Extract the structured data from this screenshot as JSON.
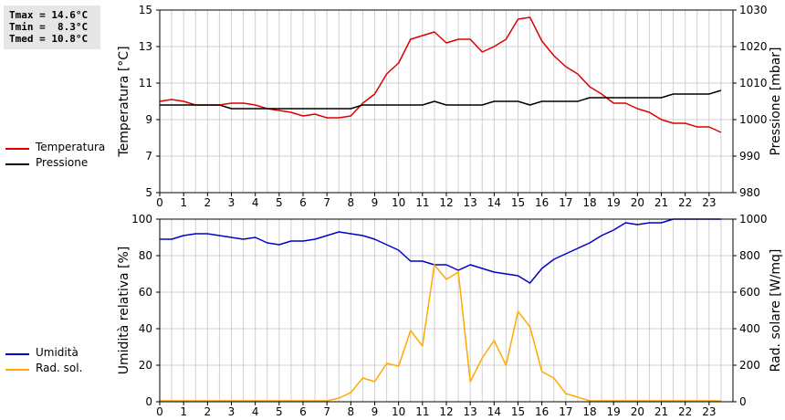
{
  "stats": {
    "tmax": "Tmax = 14.6°C",
    "tmin": "Tmin =  8.3°C",
    "tmed": "Tmed = 10.8°C"
  },
  "chart_data": [
    {
      "type": "line",
      "ylabel": "Temperatura [°C]",
      "y2label": "Pressione [mbar]",
      "xlim": [
        0,
        24
      ],
      "ylim": [
        5,
        15
      ],
      "y2lim": [
        980,
        1030
      ],
      "xticks": [
        "0",
        "1",
        "2",
        "3",
        "4",
        "5",
        "6",
        "7",
        "8",
        "9",
        "10",
        "11",
        "12",
        "13",
        "14",
        "15",
        "16",
        "17",
        "18",
        "19",
        "20",
        "21",
        "22",
        "23"
      ],
      "yticks": [
        "5",
        "7",
        "9",
        "11",
        "13",
        "15"
      ],
      "y2ticks": [
        "980",
        "990",
        "1000",
        "1010",
        "1020",
        "1030"
      ],
      "grid": true,
      "legend_position": "left",
      "series": [
        {
          "name": "Temperatura",
          "axis": "left",
          "color": "#dd0000",
          "x": [
            0,
            0.5,
            1,
            1.5,
            2,
            2.5,
            3,
            3.5,
            4,
            4.5,
            5,
            5.5,
            6,
            6.5,
            7,
            7.5,
            8,
            8.5,
            9,
            9.5,
            10,
            10.5,
            11,
            11.5,
            12,
            12.5,
            13,
            13.5,
            14,
            14.5,
            15,
            15.5,
            16,
            16.5,
            17,
            17.5,
            18,
            18.5,
            19,
            19.5,
            20,
            20.5,
            21,
            21.5,
            22,
            22.5,
            23,
            23.5
          ],
          "y": [
            10.0,
            10.1,
            10.0,
            9.8,
            9.8,
            9.8,
            9.9,
            9.9,
            9.8,
            9.6,
            9.5,
            9.4,
            9.2,
            9.3,
            9.1,
            9.1,
            9.2,
            9.9,
            10.4,
            11.5,
            12.1,
            13.4,
            13.6,
            13.8,
            13.2,
            13.4,
            13.4,
            12.7,
            13.0,
            13.4,
            14.5,
            14.6,
            13.3,
            12.5,
            11.9,
            11.5,
            10.8,
            10.4,
            9.9,
            9.9,
            9.6,
            9.4,
            9.0,
            8.8,
            8.8,
            8.6,
            8.6,
            8.3
          ]
        },
        {
          "name": "Pressione",
          "axis": "right",
          "color": "#000000",
          "x": [
            0,
            0.5,
            1,
            1.5,
            2,
            2.5,
            3,
            3.5,
            4,
            4.5,
            5,
            5.5,
            6,
            6.5,
            7,
            7.5,
            8,
            8.5,
            9,
            9.5,
            10,
            10.5,
            11,
            11.5,
            12,
            12.5,
            13,
            13.5,
            14,
            14.5,
            15,
            15.5,
            16,
            16.5,
            17,
            17.5,
            18,
            18.5,
            19,
            19.5,
            20,
            20.5,
            21,
            21.5,
            22,
            22.5,
            23,
            23.5
          ],
          "y": [
            1004,
            1004,
            1004,
            1004,
            1004,
            1004,
            1003,
            1003,
            1003,
            1003,
            1003,
            1003,
            1003,
            1003,
            1003,
            1003,
            1003,
            1004,
            1004,
            1004,
            1004,
            1004,
            1004,
            1005,
            1004,
            1004,
            1004,
            1004,
            1005,
            1005,
            1005,
            1004,
            1005,
            1005,
            1005,
            1005,
            1006,
            1006,
            1006,
            1006,
            1006,
            1006,
            1006,
            1007,
            1007,
            1007,
            1007,
            1008
          ]
        }
      ]
    },
    {
      "type": "line",
      "ylabel": "Umidità relativa [%]",
      "y2label": "Rad. solare [W/mq]",
      "xlim": [
        0,
        24
      ],
      "ylim": [
        0,
        100
      ],
      "y2lim": [
        0,
        1000
      ],
      "xticks": [
        "0",
        "1",
        "2",
        "3",
        "4",
        "5",
        "6",
        "7",
        "8",
        "9",
        "10",
        "11",
        "12",
        "13",
        "14",
        "15",
        "16",
        "17",
        "18",
        "19",
        "20",
        "21",
        "22",
        "23"
      ],
      "yticks": [
        "0",
        "20",
        "40",
        "60",
        "80",
        "100"
      ],
      "y2ticks": [
        "0",
        "200",
        "400",
        "600",
        "800",
        "1000"
      ],
      "grid": true,
      "legend_position": "left",
      "series": [
        {
          "name": "Umidità",
          "axis": "left",
          "color": "#0000cc",
          "x": [
            0,
            0.5,
            1,
            1.5,
            2,
            2.5,
            3,
            3.5,
            4,
            4.5,
            5,
            5.5,
            6,
            6.5,
            7,
            7.5,
            8,
            8.5,
            9,
            9.5,
            10,
            10.5,
            11,
            11.5,
            12,
            12.5,
            13,
            13.5,
            14,
            14.5,
            15,
            15.5,
            16,
            16.5,
            17,
            17.5,
            18,
            18.5,
            19,
            19.5,
            20,
            20.5,
            21,
            21.5,
            22,
            22.5,
            23,
            23.5
          ],
          "y": [
            89,
            89,
            91,
            92,
            92,
            91,
            90,
            89,
            90,
            87,
            86,
            88,
            88,
            89,
            91,
            93,
            92,
            91,
            89,
            86,
            83,
            77,
            77,
            75,
            75,
            72,
            75,
            73,
            71,
            70,
            69,
            65,
            73,
            78,
            81,
            84,
            87,
            91,
            94,
            98,
            97,
            98,
            98,
            100,
            100,
            100,
            100,
            100
          ]
        },
        {
          "name": "Rad. sol.",
          "axis": "right",
          "color": "#ffaa00",
          "x": [
            0,
            0.5,
            1,
            1.5,
            2,
            2.5,
            3,
            3.5,
            4,
            4.5,
            5,
            5.5,
            6,
            6.5,
            7,
            7.5,
            8,
            8.5,
            9,
            9.5,
            10,
            10.5,
            11,
            11.5,
            12,
            12.5,
            13,
            13.5,
            14,
            14.5,
            15,
            15.5,
            16,
            16.5,
            17,
            17.5,
            18,
            18.5,
            19,
            19.5,
            20,
            20.5,
            21,
            21.5,
            22,
            22.5,
            23,
            23.5
          ],
          "y": [
            5,
            5,
            5,
            5,
            5,
            5,
            5,
            5,
            5,
            5,
            5,
            5,
            5,
            5,
            5,
            20,
            50,
            130,
            110,
            210,
            195,
            390,
            305,
            750,
            670,
            710,
            110,
            240,
            335,
            200,
            495,
            410,
            165,
            130,
            45,
            25,
            5,
            5,
            5,
            5,
            5,
            5,
            5,
            5,
            5,
            5,
            5,
            5
          ]
        }
      ]
    }
  ]
}
